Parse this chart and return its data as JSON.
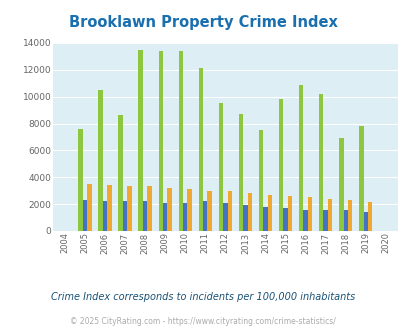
{
  "title": "Brooklawn Property Crime Index",
  "title_color": "#1a6faf",
  "years": [
    2004,
    2005,
    2006,
    2007,
    2008,
    2009,
    2010,
    2011,
    2012,
    2013,
    2014,
    2015,
    2016,
    2017,
    2018,
    2019,
    2020
  ],
  "brooklawn": [
    0,
    7600,
    10500,
    8600,
    13500,
    13400,
    13400,
    12100,
    9500,
    8700,
    7500,
    9800,
    10900,
    10200,
    6900,
    7850,
    0
  ],
  "new_jersey": [
    0,
    2300,
    2250,
    2250,
    2250,
    2100,
    2100,
    2200,
    2100,
    1950,
    1800,
    1700,
    1600,
    1600,
    1550,
    1450,
    0
  ],
  "national": [
    0,
    3500,
    3400,
    3350,
    3350,
    3200,
    3100,
    3000,
    2950,
    2800,
    2700,
    2600,
    2550,
    2400,
    2300,
    2150,
    0
  ],
  "brooklawn_color": "#8dc63f",
  "nj_color": "#4472c4",
  "national_color": "#f0a830",
  "bg_color": "#ddeef5",
  "ylim": [
    0,
    14000
  ],
  "yticks": [
    0,
    2000,
    4000,
    6000,
    8000,
    10000,
    12000,
    14000
  ],
  "subtitle": "Crime Index corresponds to incidents per 100,000 inhabitants",
  "footer": "© 2025 CityRating.com - https://www.cityrating.com/crime-statistics/",
  "subtitle_color": "#1a5276",
  "footer_color": "#aaaaaa",
  "bar_width": 0.22
}
